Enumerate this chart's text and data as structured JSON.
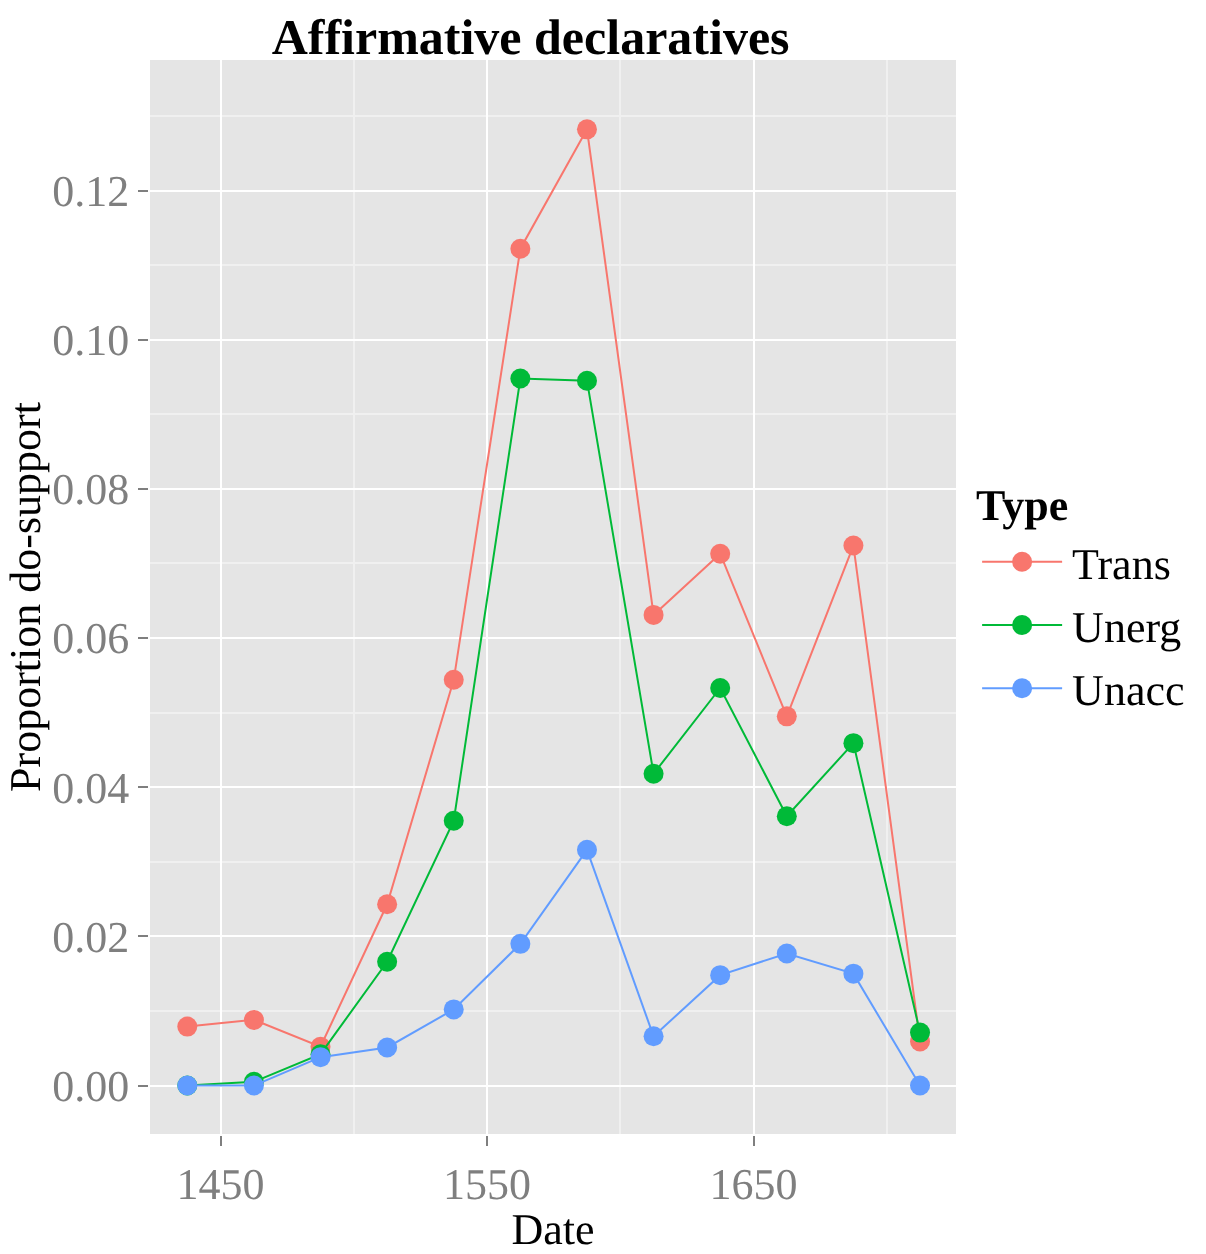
{
  "chart_data": {
    "type": "line",
    "title": "Affirmative declaratives",
    "xlabel": "Date",
    "ylabel": "Proportion do-support",
    "legend_title": "Type",
    "x": [
      1437.5,
      1462.5,
      1487.5,
      1512.5,
      1537.5,
      1562.5,
      1587.5,
      1612.5,
      1637.5,
      1662.5,
      1687.5,
      1712.5
    ],
    "series": [
      {
        "name": "Trans",
        "color": "#f8766d",
        "values": [
          0.0079,
          0.0088,
          0.0052,
          0.0243,
          0.0544,
          0.1122,
          0.1282,
          0.0631,
          0.0713,
          0.0495,
          0.0724,
          0.0059
        ]
      },
      {
        "name": "Unerg",
        "color": "#00ba38",
        "values": [
          0.0,
          0.0005,
          0.0042,
          0.0166,
          0.0355,
          0.0948,
          0.0945,
          0.0418,
          0.0533,
          0.0361,
          0.0459,
          0.0071
        ]
      },
      {
        "name": "Unacc",
        "color": "#619cff",
        "values": [
          0.0,
          0.0,
          0.0038,
          0.0051,
          0.0102,
          0.019,
          0.0316,
          0.0066,
          0.0148,
          0.0177,
          0.015,
          0.0
        ]
      }
    ],
    "xlim": [
      1423.5,
      1726
    ],
    "xticks": [
      1450,
      1550,
      1650
    ],
    "ylim": [
      -0.0065,
      0.1375
    ],
    "yticks": [
      {
        "value": 0,
        "label": "0.00"
      },
      {
        "value": 0.02,
        "label": "0.02"
      },
      {
        "value": 0.04,
        "label": "0.04"
      },
      {
        "value": 0.06,
        "label": "0.06"
      },
      {
        "value": 0.08,
        "label": "0.08"
      },
      {
        "value": 0.1,
        "label": "0.10"
      },
      {
        "value": 0.12,
        "label": "0.12"
      }
    ],
    "grid": true,
    "legend": "right",
    "marker": "circle",
    "line_style": "solid"
  }
}
